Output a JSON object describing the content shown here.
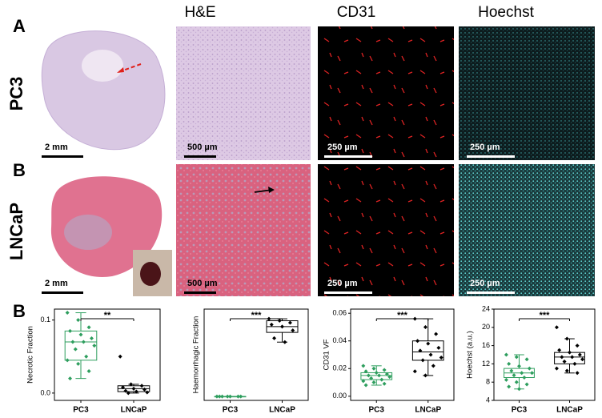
{
  "panel_labels": [
    "A",
    "B",
    "B"
  ],
  "column_headers": [
    "H&E",
    "CD31",
    "Hoechst"
  ],
  "row_labels": [
    "PC3",
    "LNCaP"
  ],
  "scale_bars": [
    [
      "2 mm",
      "500 µm",
      "250 µm",
      "250 µm"
    ],
    [
      "2 mm",
      "500 µm",
      "250 µm",
      "250 µm"
    ]
  ],
  "chart_data": [
    {
      "type": "box",
      "y_label": "Necrotic Fraction",
      "categories": [
        "PC3",
        "LNCaP"
      ],
      "colors": [
        "#2e9e5e",
        "#000000"
      ],
      "ylim": [
        -0.01,
        0.115
      ],
      "yticks": [
        {
          "value": 0,
          "label": "0.0"
        },
        0.1
      ],
      "significance": "**",
      "boxes": [
        {
          "min": 0.02,
          "q1": 0.045,
          "median": 0.07,
          "q3": 0.085,
          "max": 0.11,
          "points": [
            0.11,
            0.1,
            0.09,
            0.085,
            0.08,
            0.075,
            0.07,
            0.07,
            0.065,
            0.06,
            0.05,
            0.045,
            0.04,
            0.03,
            0.02
          ]
        },
        {
          "min": 0,
          "q1": 0.002,
          "median": 0.006,
          "q3": 0.01,
          "max": 0.012,
          "points": [
            0.05,
            0.012,
            0.01,
            0.008,
            0.006,
            0.005,
            0.003,
            0.002,
            0.001,
            0
          ]
        }
      ]
    },
    {
      "type": "box",
      "y_label": "Haemorrhagic Fraction",
      "categories": [
        "PC3",
        "LNCaP"
      ],
      "colors": [
        "#2e9e5e",
        "#000000"
      ],
      "ylim": [
        -0.02,
        0.45
      ],
      "significance": "***",
      "boxes": [
        {
          "min": 0,
          "q1": 0,
          "median": 0,
          "q3": 0,
          "max": 0,
          "points": [
            0,
            0,
            0,
            0,
            0,
            0,
            0
          ]
        },
        {
          "min": 0.28,
          "q1": 0.33,
          "median": 0.36,
          "q3": 0.39,
          "max": 0.4,
          "points": [
            0.4,
            0.39,
            0.38,
            0.37,
            0.36,
            0.34,
            0.3,
            0.28
          ]
        }
      ]
    },
    {
      "type": "box",
      "y_label": "CD31 VF",
      "categories": [
        "PC3",
        "LNCaP"
      ],
      "colors": [
        "#2e9e5e",
        "#000000"
      ],
      "ylim": [
        -0.003,
        0.063
      ],
      "yticks": [
        {
          "value": 0,
          "label": "0.00"
        },
        0.02,
        0.04,
        0.06
      ],
      "significance": "***",
      "boxes": [
        {
          "min": 0.008,
          "q1": 0.012,
          "median": 0.015,
          "q3": 0.017,
          "max": 0.022,
          "points": [
            0.022,
            0.02,
            0.019,
            0.018,
            0.017,
            0.016,
            0.015,
            0.015,
            0.014,
            0.013,
            0.012,
            0.011,
            0.01,
            0.009,
            0.008
          ]
        },
        {
          "min": 0.015,
          "q1": 0.026,
          "median": 0.032,
          "q3": 0.04,
          "max": 0.056,
          "points": [
            0.056,
            0.05,
            0.045,
            0.04,
            0.038,
            0.035,
            0.033,
            0.03,
            0.028,
            0.026,
            0.022,
            0.018,
            0.015
          ]
        }
      ]
    },
    {
      "type": "box",
      "y_label": "Hoechst (a.u.)",
      "categories": [
        "PC3",
        "LNCaP"
      ],
      "colors": [
        "#2e9e5e",
        "#000000"
      ],
      "ylim": [
        4,
        24
      ],
      "yticks": [
        4,
        8,
        12,
        16,
        20,
        24
      ],
      "significance": "***",
      "boxes": [
        {
          "min": 6.5,
          "q1": 9,
          "median": 10,
          "q3": 11,
          "max": 14,
          "points": [
            14,
            13.5,
            13,
            12,
            11.5,
            11,
            10.5,
            10,
            10,
            9.5,
            9,
            8.5,
            8,
            7.5,
            7,
            6.5
          ]
        },
        {
          "min": 10,
          "q1": 12,
          "median": 13.5,
          "q3": 14.5,
          "max": 17.5,
          "points": [
            20,
            17.5,
            16,
            15,
            14.5,
            14,
            13.5,
            13.5,
            13,
            12.5,
            12,
            11,
            10.5,
            10
          ]
        }
      ]
    }
  ]
}
